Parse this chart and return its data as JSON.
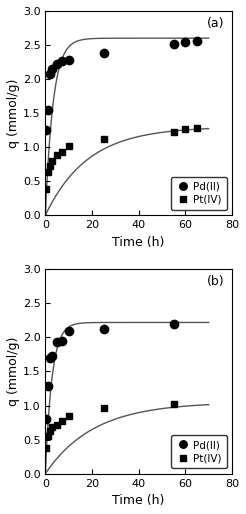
{
  "panel_a": {
    "label": "(a)",
    "Pd_time": [
      0.5,
      1,
      2,
      3,
      5,
      7,
      10,
      25,
      55,
      60,
      65
    ],
    "Pd_q": [
      1.25,
      1.55,
      2.08,
      2.15,
      2.22,
      2.27,
      2.28,
      2.38,
      2.52,
      2.55,
      2.56
    ],
    "Pt_time": [
      0.5,
      1,
      2,
      3,
      5,
      7,
      10,
      25,
      55,
      60,
      65
    ],
    "Pt_q": [
      0.38,
      0.63,
      0.72,
      0.8,
      0.88,
      0.93,
      1.02,
      1.12,
      1.22,
      1.26,
      1.28
    ],
    "Pd_qe": 2.6,
    "Pd_k": 0.3,
    "Pt_qe": 1.3,
    "Pt_k": 0.055
  },
  "panel_b": {
    "label": "(b)",
    "Pd_time": [
      0.5,
      1,
      2,
      3,
      5,
      7,
      10,
      25,
      55
    ],
    "Pd_q": [
      0.8,
      1.28,
      1.7,
      1.73,
      1.93,
      1.95,
      2.1,
      2.12,
      2.2
    ],
    "Pt_time": [
      0.5,
      1,
      2,
      3,
      5,
      7,
      10,
      25,
      55
    ],
    "Pt_q": [
      0.38,
      0.55,
      0.63,
      0.68,
      0.72,
      0.78,
      0.85,
      0.97,
      1.02
    ],
    "Pd_qe": 2.22,
    "Pd_k": 0.35,
    "Pt_qe": 1.05,
    "Pt_k": 0.048
  },
  "xlim": [
    0,
    80
  ],
  "ylim": [
    0.0,
    3.0
  ],
  "xticks": [
    0,
    20,
    40,
    60,
    80
  ],
  "yticks": [
    0.0,
    0.5,
    1.0,
    1.5,
    2.0,
    2.5,
    3.0
  ],
  "xlabel": "Time (h)",
  "ylabel": "q (mmol/g)",
  "marker_Pd": "o",
  "marker_Pt": "s",
  "marker_color": "black",
  "line_color": "#555555",
  "marker_size_Pd": 6,
  "marker_size_Pt": 5,
  "legend_Pd": "Pd(II)",
  "legend_Pt": "Pt(IV)",
  "fit_xmax": 70
}
